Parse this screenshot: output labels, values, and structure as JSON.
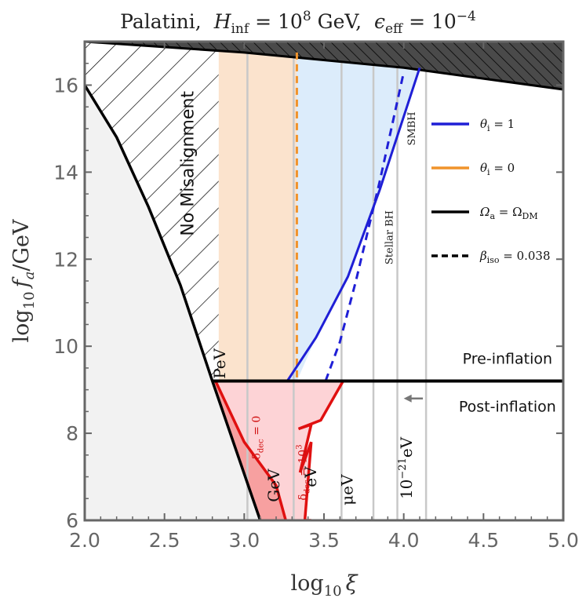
{
  "chart_data": {
    "type": "area",
    "title_parts": {
      "model": "Palatini,",
      "hinf_sym": "H",
      "hinf_sub": "inf",
      "hinf_eq": " = 10",
      "hinf_exp": "8",
      "hinf_unit": " GeV,",
      "eps_sym": "ϵ",
      "eps_sub": "eff",
      "eps_eq": " = 10",
      "eps_exp": "−4"
    },
    "xlabel_parts": {
      "pre": "log",
      "sub": "10",
      "var": "ξ"
    },
    "ylabel_parts": {
      "pre": "log",
      "sub": "10",
      "var": "f",
      "varsub": "a",
      "post": "/GeV"
    },
    "xlim": [
      2.0,
      5.0
    ],
    "ylim": [
      6,
      17
    ],
    "xticks": [
      "2.0",
      "2.5",
      "3.0",
      "3.5",
      "4.0",
      "4.5",
      "5.0"
    ],
    "yticks": [
      "6",
      "8",
      "10",
      "12",
      "14",
      "16"
    ],
    "legend_position": "right",
    "legend": [
      {
        "sym": "θ",
        "sub": "i",
        "rest": " = 1",
        "color": "#1f1fd6",
        "dash": false
      },
      {
        "sym": "θ",
        "sub": "i",
        "rest": " = 0",
        "color": "#f0932b",
        "dash": false
      },
      {
        "sym": "Ω",
        "sub": "a",
        "rest": " = Ω",
        "sub2": "DM",
        "color": "#000000",
        "dash": false
      },
      {
        "sym": "β",
        "sub": "iso",
        "rest": " = 0.038",
        "color": "#000000",
        "dash": true
      }
    ],
    "regions": {
      "no_misalignment": "No Misalignment",
      "pre_inflation": "Pre-inflation",
      "post_inflation": "Post-inflation"
    },
    "mass_labels": [
      {
        "text": "PeV",
        "x": 2.88,
        "y": 9.6
      },
      {
        "text": "GeV",
        "x": 3.22,
        "y": 6.8
      },
      {
        "text": "eV",
        "x": 3.45,
        "y": 7.0
      },
      {
        "text": "μeV",
        "x": 3.68,
        "y": 6.7
      },
      {
        "text": "10",
        "exp": "−21",
        "suffix": "eV",
        "x": 4.05,
        "y": 7.2
      }
    ],
    "bh_labels": [
      {
        "text": "Stellar BH",
        "x": 3.93,
        "y": 12.5
      },
      {
        "text": "SMBH",
        "x": 4.07,
        "y": 15.0
      }
    ],
    "delta_labels": [
      {
        "pre": "δ",
        "sub": "dec",
        "post": " = 0",
        "x": 3.1,
        "y": 7.9
      },
      {
        "pre": "δ",
        "sub": "dec",
        "post": " = 10",
        "exp": "3",
        "x": 3.39,
        "y": 7.1
      }
    ],
    "vertical_lines_x": [
      3.02,
      3.31,
      3.61,
      3.81,
      3.96,
      4.14
    ],
    "transition_y": 9.2,
    "curves": {
      "dm_boundary": {
        "x": [
          2.0,
          2.2,
          2.4,
          2.6,
          2.8,
          2.95,
          3.1
        ],
        "y": [
          16.0,
          14.8,
          13.2,
          11.4,
          9.2,
          7.6,
          6.0
        ]
      },
      "top_boundary": {
        "x": [
          2.0,
          3.0,
          4.0,
          5.0
        ],
        "y": [
          17.0,
          16.75,
          16.4,
          15.9
        ]
      },
      "blue_theta1": {
        "x": [
          3.27,
          3.45,
          3.65,
          3.85,
          4.1
        ],
        "y": [
          9.2,
          10.2,
          11.6,
          13.6,
          16.4
        ]
      },
      "blue_iso_dashed": {
        "x": [
          3.51,
          3.6,
          3.7,
          3.85,
          4.0
        ],
        "y": [
          9.2,
          10.1,
          11.5,
          13.8,
          16.3
        ]
      },
      "orange_theta0_dashed_x": 3.33,
      "red_delta0": {
        "x": [
          2.82,
          3.0,
          3.2,
          3.26
        ],
        "y": [
          9.2,
          7.8,
          6.8,
          6.0
        ]
      },
      "red_delta1000": {
        "x": [
          3.62,
          3.48,
          3.34,
          3.42,
          3.35,
          3.42,
          3.38,
          3.42
        ],
        "y": [
          9.2,
          8.3,
          8.1,
          8.2,
          7.1,
          7.8,
          6.0,
          6.0
        ]
      }
    },
    "shaded": {
      "gray_excluded": "#f2f2f2",
      "peach_band_x": [
        2.84,
        3.33
      ],
      "peach_color": "#fbe3cd",
      "blue_fill": "#dcecfb",
      "red_fill": "#f7a0a0",
      "pink_fill": "#fdd3d6"
    }
  }
}
